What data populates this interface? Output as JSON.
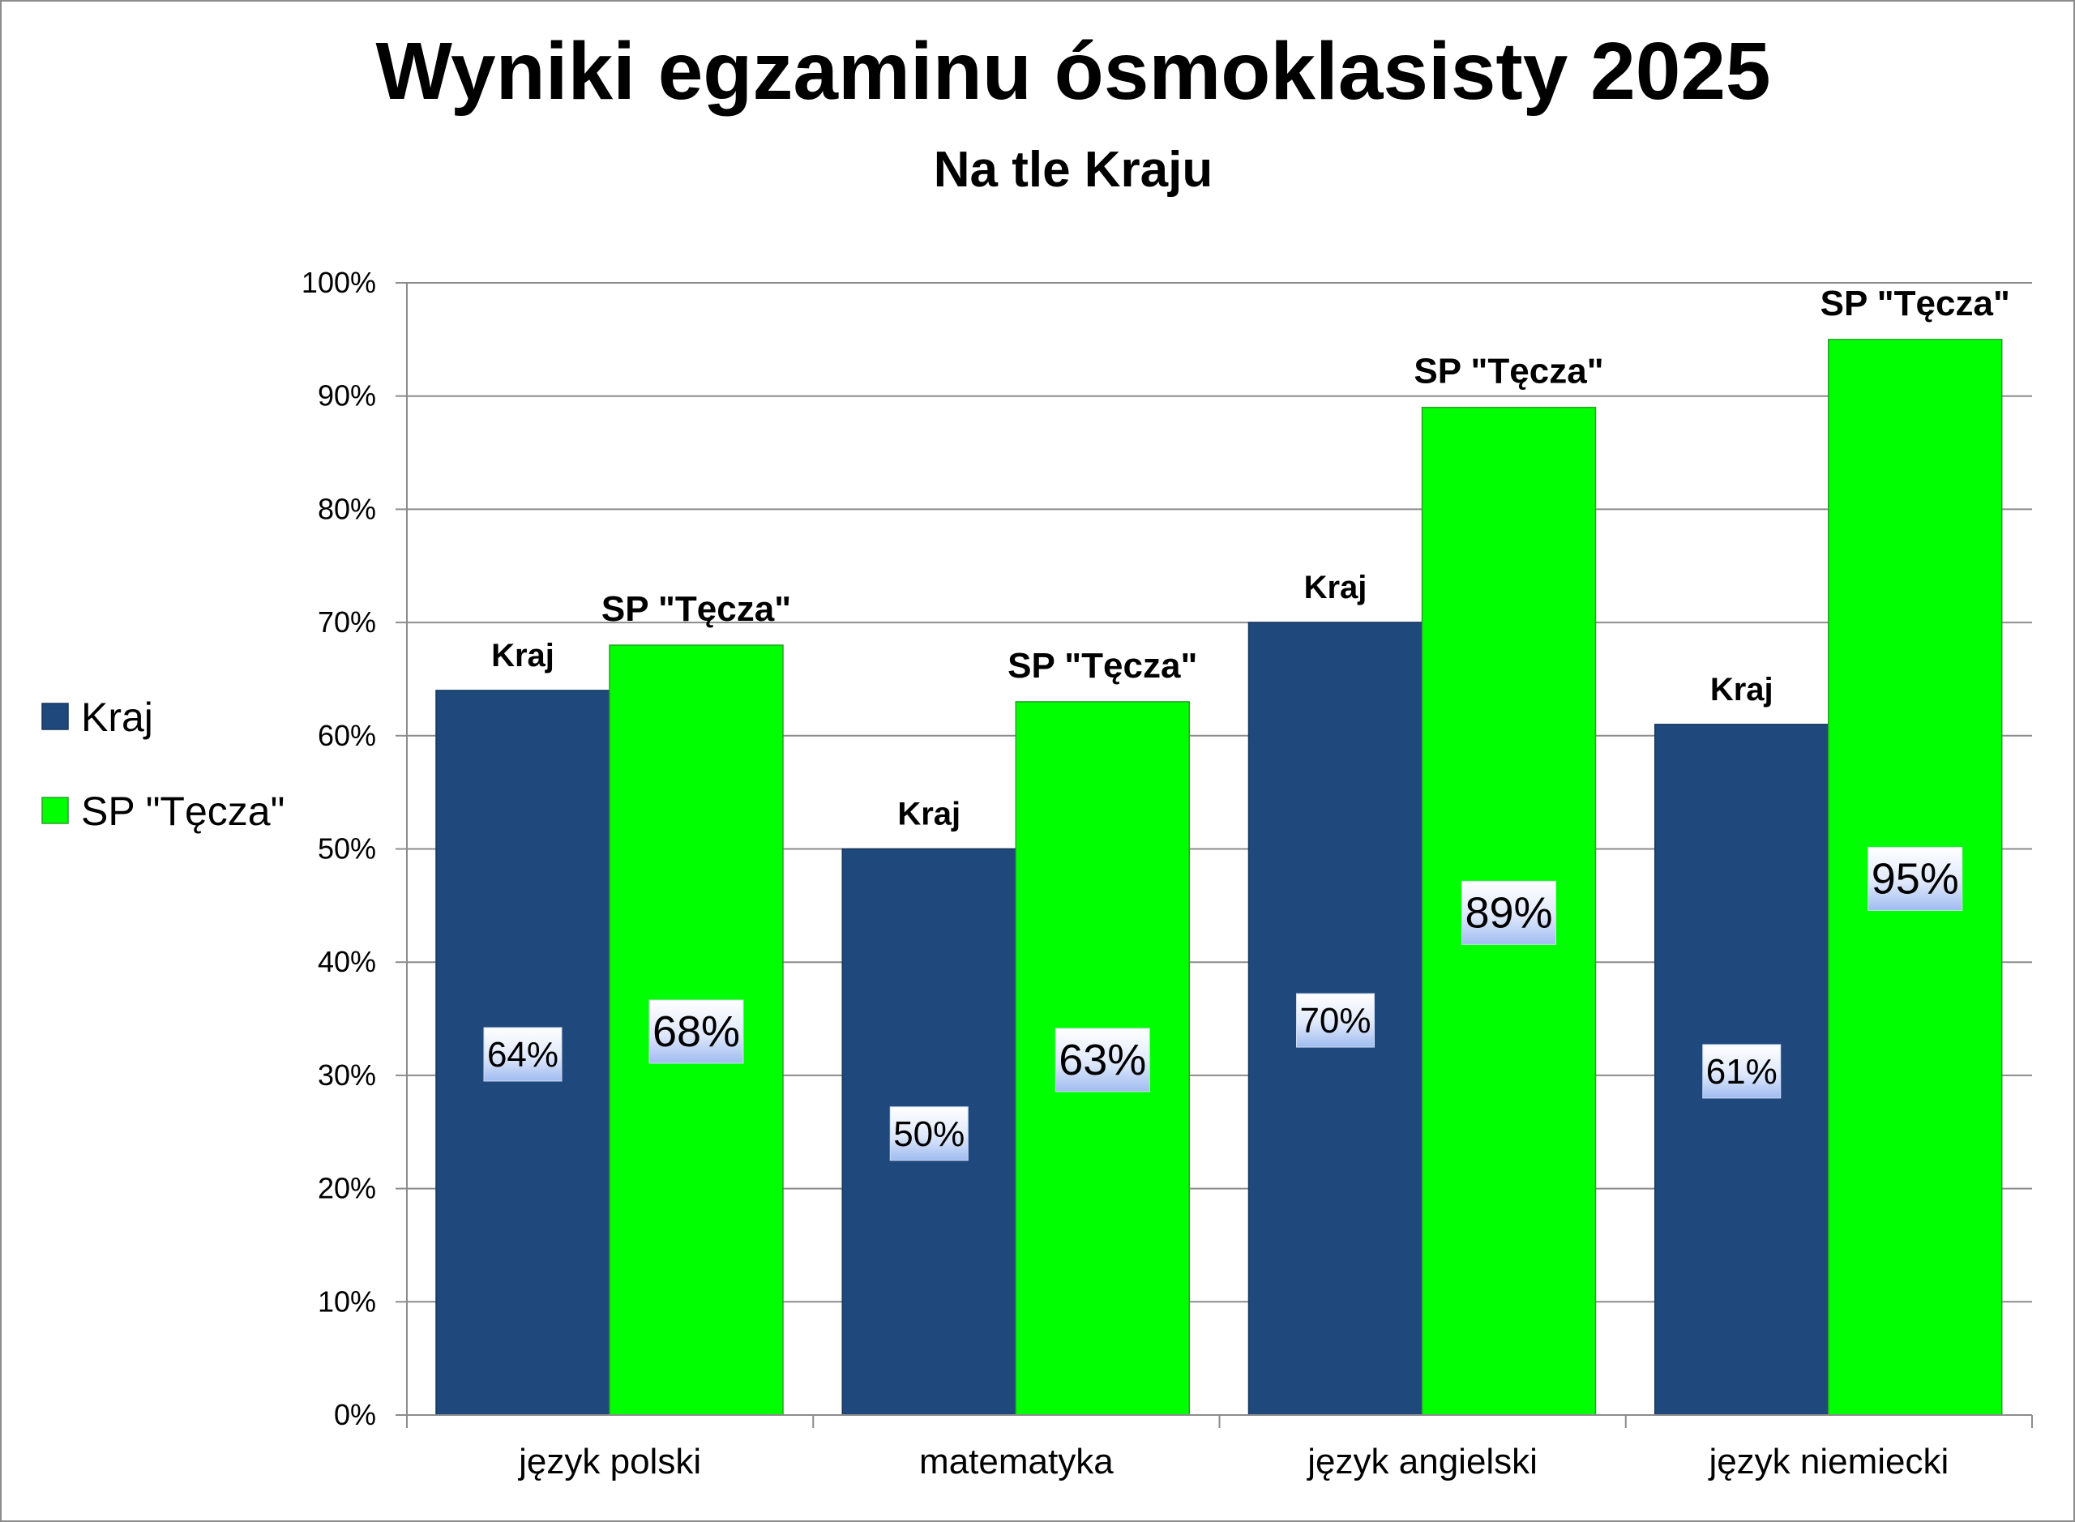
{
  "chart_data": {
    "type": "bar",
    "title": "Wyniki egzaminu ósmoklasisty 2025",
    "subtitle": "Na tle Kraju",
    "categories": [
      "język polski",
      "matematyka",
      "język angielski",
      "język niemiecki"
    ],
    "series": [
      {
        "name": "Kraj",
        "values": [
          64,
          50,
          70,
          61
        ],
        "color": "#1f497d",
        "data_labels": [
          "64%",
          "50%",
          "70%",
          "61%"
        ],
        "bar_label": "Kraj"
      },
      {
        "name": "SP \"Tęcza\"",
        "values": [
          68,
          63,
          89,
          95
        ],
        "color": "#00ff00",
        "data_labels": [
          "68%",
          "63%",
          "89%",
          "95%"
        ],
        "bar_label": "SP \"Tęcza\""
      }
    ],
    "ylim": [
      0,
      100
    ],
    "y_ticks": [
      "0%",
      "10%",
      "20%",
      "30%",
      "40%",
      "50%",
      "60%",
      "70%",
      "80%",
      "90%",
      "100%"
    ],
    "grid": true,
    "legend_position": "left"
  }
}
